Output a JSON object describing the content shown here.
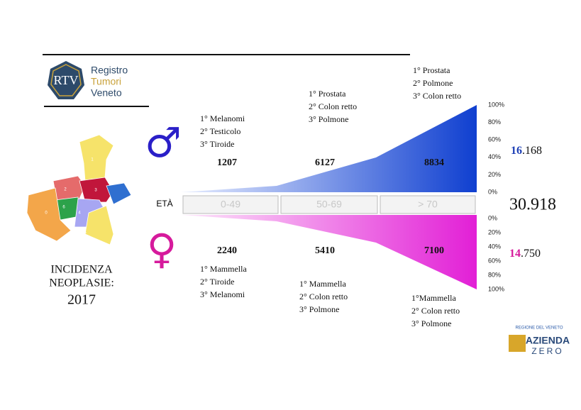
{
  "logo": {
    "monogram": "RTV",
    "lines": [
      "Registro",
      "Tumori",
      "Veneto"
    ]
  },
  "map": {
    "labels": [
      "1",
      "2",
      "3",
      "6",
      "4",
      "5",
      "0"
    ]
  },
  "title": {
    "lines": [
      "INCIDENZA",
      "NEOPLASIE:",
      "2017"
    ]
  },
  "age_label": "ETÀ",
  "age_groups": [
    "0-49",
    "50-69",
    "> 70"
  ],
  "male": {
    "symbol": "♂",
    "counts": [
      "1207",
      "6127",
      "8834"
    ],
    "top_sites": [
      [
        "1° Melanomi",
        "2° Testicolo",
        "3° Tiroide"
      ],
      [
        "1° Prostata",
        "2° Colon retto",
        "3° Polmone"
      ],
      [
        "1° Prostata",
        "2° Polmone",
        "3° Colon retto"
      ]
    ],
    "scale": [
      "100%",
      "80%",
      "60%",
      "40%",
      "20%",
      "0%"
    ],
    "total": {
      "lead": "16",
      "rest": ".168"
    }
  },
  "female": {
    "symbol": "♀",
    "counts": [
      "2240",
      "5410",
      "7100"
    ],
    "top_sites": [
      [
        "1° Mammella",
        "2° Tiroide",
        "3° Melanomi"
      ],
      [
        "1° Mammella",
        "2° Colon retto",
        "3° Polmone"
      ],
      [
        "1°Mammella",
        "2° Colon retto",
        "3° Polmone"
      ]
    ],
    "scale": [
      "0%",
      "20%",
      "40%",
      "60%",
      "80%",
      "100%"
    ],
    "total": {
      "lead": "14",
      "rest": ".750"
    }
  },
  "grand_total": "30.918",
  "footer_logo": {
    "top": "REGIONE DEL VENETO",
    "line1": "AZIENDA",
    "line2": "ZERO"
  }
}
